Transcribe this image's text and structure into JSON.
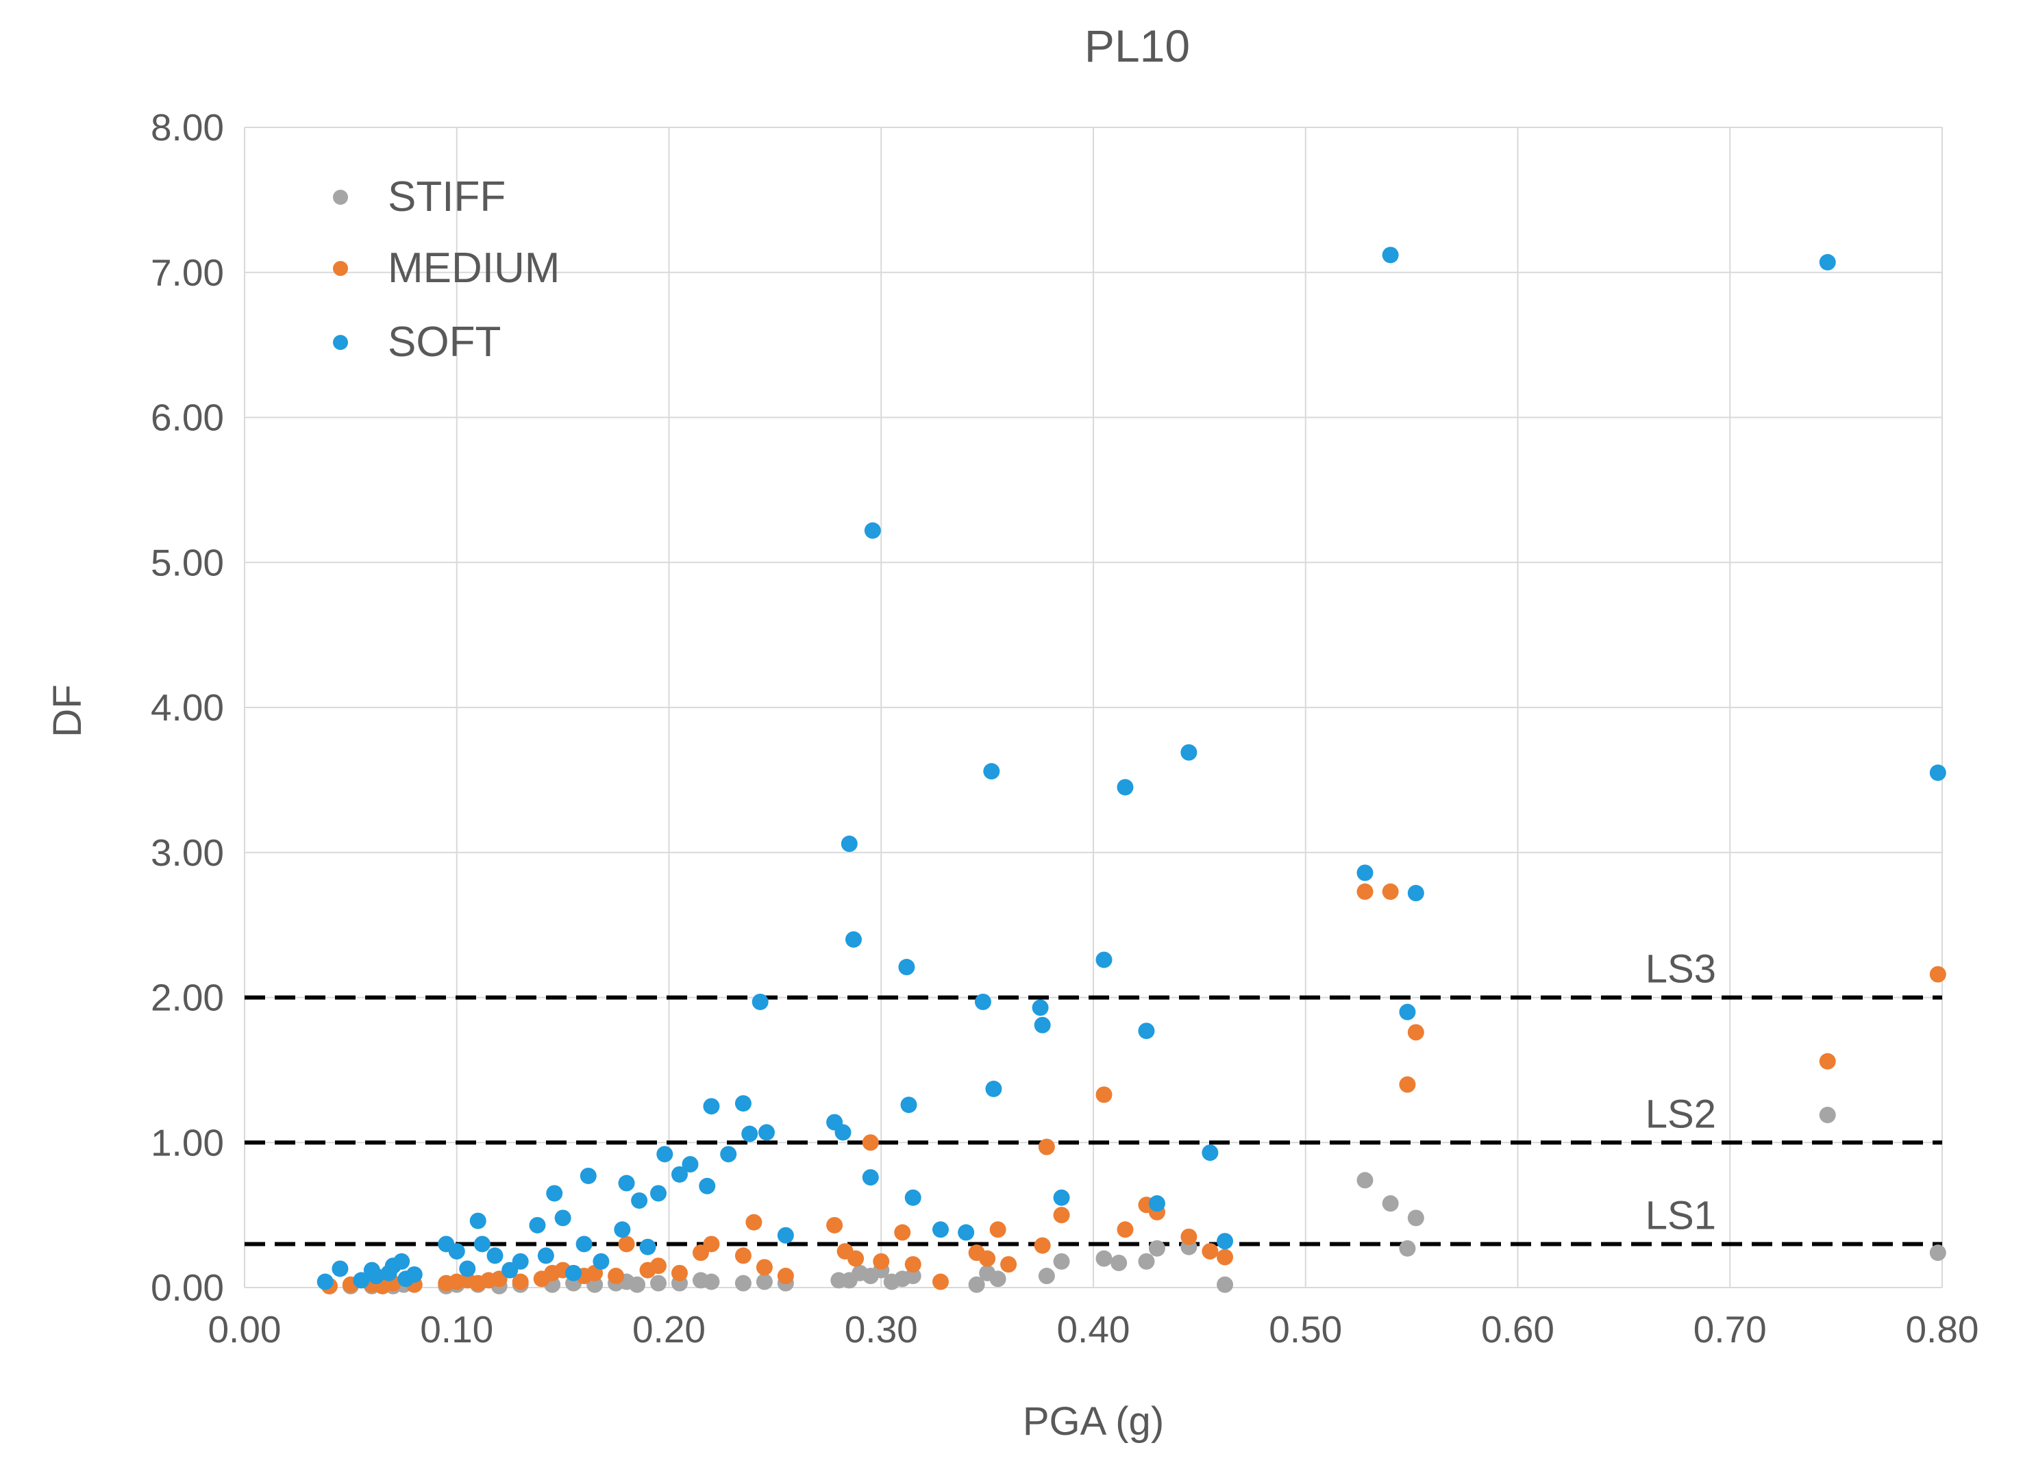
{
  "chart_data": {
    "type": "scatter",
    "title": "PL10",
    "xlabel": "PGA (g)",
    "ylabel": "DF",
    "xlim": [
      0,
      0.8
    ],
    "ylim": [
      0,
      8
    ],
    "x_ticks": [
      0,
      0.1,
      0.2,
      0.3,
      0.4,
      0.5,
      0.6,
      0.7,
      0.8
    ],
    "y_ticks": [
      0,
      1,
      2,
      3,
      4,
      5,
      6,
      7,
      8
    ],
    "x_tick_labels": [
      "0.00",
      "0.10",
      "0.20",
      "0.30",
      "0.40",
      "0.50",
      "0.60",
      "0.70",
      "0.80"
    ],
    "y_tick_labels": [
      "0.00",
      "1.00",
      "2.00",
      "3.00",
      "4.00",
      "5.00",
      "6.00",
      "7.00",
      "8.00"
    ],
    "grid": true,
    "legend_position": "top-left",
    "thresholds": [
      {
        "name": "LS3",
        "value": 2.0
      },
      {
        "name": "LS2",
        "value": 1.0
      },
      {
        "name": "LS1",
        "value": 0.3
      }
    ],
    "series": [
      {
        "name": "STIFF",
        "color": "#a5a5a5",
        "points": [
          [
            0.04,
            0.01
          ],
          [
            0.05,
            0.01
          ],
          [
            0.06,
            0.01
          ],
          [
            0.065,
            0.02
          ],
          [
            0.07,
            0.01
          ],
          [
            0.075,
            0.02
          ],
          [
            0.095,
            0.01
          ],
          [
            0.1,
            0.02
          ],
          [
            0.11,
            0.02
          ],
          [
            0.12,
            0.01
          ],
          [
            0.13,
            0.02
          ],
          [
            0.145,
            0.02
          ],
          [
            0.155,
            0.03
          ],
          [
            0.165,
            0.02
          ],
          [
            0.175,
            0.03
          ],
          [
            0.18,
            0.04
          ],
          [
            0.185,
            0.02
          ],
          [
            0.195,
            0.03
          ],
          [
            0.205,
            0.03
          ],
          [
            0.215,
            0.05
          ],
          [
            0.22,
            0.04
          ],
          [
            0.235,
            0.03
          ],
          [
            0.245,
            0.04
          ],
          [
            0.255,
            0.03
          ],
          [
            0.28,
            0.05
          ],
          [
            0.285,
            0.05
          ],
          [
            0.29,
            0.1
          ],
          [
            0.295,
            0.08
          ],
          [
            0.3,
            0.12
          ],
          [
            0.305,
            0.04
          ],
          [
            0.31,
            0.06
          ],
          [
            0.315,
            0.08
          ],
          [
            0.345,
            0.02
          ],
          [
            0.35,
            0.1
          ],
          [
            0.355,
            0.06
          ],
          [
            0.378,
            0.08
          ],
          [
            0.385,
            0.18
          ],
          [
            0.405,
            0.2
          ],
          [
            0.412,
            0.17
          ],
          [
            0.425,
            0.18
          ],
          [
            0.43,
            0.27
          ],
          [
            0.445,
            0.28
          ],
          [
            0.462,
            0.02
          ],
          [
            0.528,
            0.74
          ],
          [
            0.54,
            0.58
          ],
          [
            0.548,
            0.27
          ],
          [
            0.552,
            0.48
          ],
          [
            0.746,
            1.19
          ],
          [
            0.798,
            0.24
          ]
        ]
      },
      {
        "name": "MEDIUM",
        "color": "#ed7d31",
        "points": [
          [
            0.04,
            0.01
          ],
          [
            0.05,
            0.02
          ],
          [
            0.06,
            0.02
          ],
          [
            0.065,
            0.01
          ],
          [
            0.07,
            0.03
          ],
          [
            0.08,
            0.02
          ],
          [
            0.095,
            0.03
          ],
          [
            0.1,
            0.04
          ],
          [
            0.105,
            0.05
          ],
          [
            0.11,
            0.03
          ],
          [
            0.115,
            0.05
          ],
          [
            0.12,
            0.06
          ],
          [
            0.13,
            0.04
          ],
          [
            0.14,
            0.06
          ],
          [
            0.145,
            0.1
          ],
          [
            0.15,
            0.12
          ],
          [
            0.16,
            0.08
          ],
          [
            0.165,
            0.1
          ],
          [
            0.175,
            0.08
          ],
          [
            0.18,
            0.3
          ],
          [
            0.19,
            0.12
          ],
          [
            0.195,
            0.15
          ],
          [
            0.205,
            0.1
          ],
          [
            0.215,
            0.24
          ],
          [
            0.22,
            0.3
          ],
          [
            0.235,
            0.22
          ],
          [
            0.24,
            0.45
          ],
          [
            0.245,
            0.14
          ],
          [
            0.255,
            0.08
          ],
          [
            0.278,
            0.43
          ],
          [
            0.283,
            0.25
          ],
          [
            0.288,
            0.2
          ],
          [
            0.295,
            1.0
          ],
          [
            0.3,
            0.18
          ],
          [
            0.31,
            0.38
          ],
          [
            0.315,
            0.16
          ],
          [
            0.328,
            0.04
          ],
          [
            0.345,
            0.24
          ],
          [
            0.35,
            0.2
          ],
          [
            0.355,
            0.4
          ],
          [
            0.36,
            0.16
          ],
          [
            0.376,
            0.29
          ],
          [
            0.378,
            0.97
          ],
          [
            0.385,
            0.5
          ],
          [
            0.405,
            1.33
          ],
          [
            0.415,
            0.4
          ],
          [
            0.425,
            0.57
          ],
          [
            0.43,
            0.52
          ],
          [
            0.445,
            0.35
          ],
          [
            0.455,
            0.25
          ],
          [
            0.462,
            0.21
          ],
          [
            0.528,
            2.73
          ],
          [
            0.54,
            2.73
          ],
          [
            0.548,
            1.4
          ],
          [
            0.552,
            1.76
          ],
          [
            0.746,
            1.56
          ],
          [
            0.798,
            2.16
          ]
        ]
      },
      {
        "name": "SOFT",
        "color": "#1f9bde",
        "points": [
          [
            0.038,
            0.04
          ],
          [
            0.045,
            0.13
          ],
          [
            0.055,
            0.05
          ],
          [
            0.06,
            0.12
          ],
          [
            0.062,
            0.08
          ],
          [
            0.068,
            0.1
          ],
          [
            0.07,
            0.15
          ],
          [
            0.074,
            0.18
          ],
          [
            0.076,
            0.06
          ],
          [
            0.08,
            0.09
          ],
          [
            0.095,
            0.3
          ],
          [
            0.1,
            0.25
          ],
          [
            0.105,
            0.13
          ],
          [
            0.11,
            0.46
          ],
          [
            0.112,
            0.3
          ],
          [
            0.118,
            0.22
          ],
          [
            0.125,
            0.12
          ],
          [
            0.13,
            0.18
          ],
          [
            0.138,
            0.43
          ],
          [
            0.142,
            0.22
          ],
          [
            0.146,
            0.65
          ],
          [
            0.15,
            0.48
          ],
          [
            0.155,
            0.1
          ],
          [
            0.16,
            0.3
          ],
          [
            0.162,
            0.77
          ],
          [
            0.168,
            0.18
          ],
          [
            0.178,
            0.4
          ],
          [
            0.18,
            0.72
          ],
          [
            0.186,
            0.6
          ],
          [
            0.19,
            0.28
          ],
          [
            0.195,
            0.65
          ],
          [
            0.198,
            0.92
          ],
          [
            0.205,
            0.78
          ],
          [
            0.21,
            0.85
          ],
          [
            0.218,
            0.7
          ],
          [
            0.22,
            1.25
          ],
          [
            0.228,
            0.92
          ],
          [
            0.235,
            1.27
          ],
          [
            0.238,
            1.06
          ],
          [
            0.243,
            1.97
          ],
          [
            0.246,
            1.07
          ],
          [
            0.255,
            0.36
          ],
          [
            0.278,
            1.14
          ],
          [
            0.282,
            1.07
          ],
          [
            0.285,
            3.06
          ],
          [
            0.287,
            2.4
          ],
          [
            0.295,
            0.76
          ],
          [
            0.296,
            5.22
          ],
          [
            0.312,
            2.21
          ],
          [
            0.313,
            1.26
          ],
          [
            0.315,
            0.62
          ],
          [
            0.328,
            0.4
          ],
          [
            0.34,
            0.38
          ],
          [
            0.348,
            1.97
          ],
          [
            0.352,
            3.56
          ],
          [
            0.353,
            1.37
          ],
          [
            0.375,
            1.93
          ],
          [
            0.376,
            1.81
          ],
          [
            0.385,
            0.62
          ],
          [
            0.405,
            2.26
          ],
          [
            0.415,
            3.45
          ],
          [
            0.425,
            1.77
          ],
          [
            0.43,
            0.58
          ],
          [
            0.445,
            3.69
          ],
          [
            0.455,
            0.93
          ],
          [
            0.462,
            0.32
          ],
          [
            0.528,
            2.86
          ],
          [
            0.54,
            7.12
          ],
          [
            0.548,
            1.9
          ],
          [
            0.552,
            2.72
          ],
          [
            0.746,
            7.07
          ],
          [
            0.798,
            3.55
          ]
        ]
      }
    ]
  }
}
